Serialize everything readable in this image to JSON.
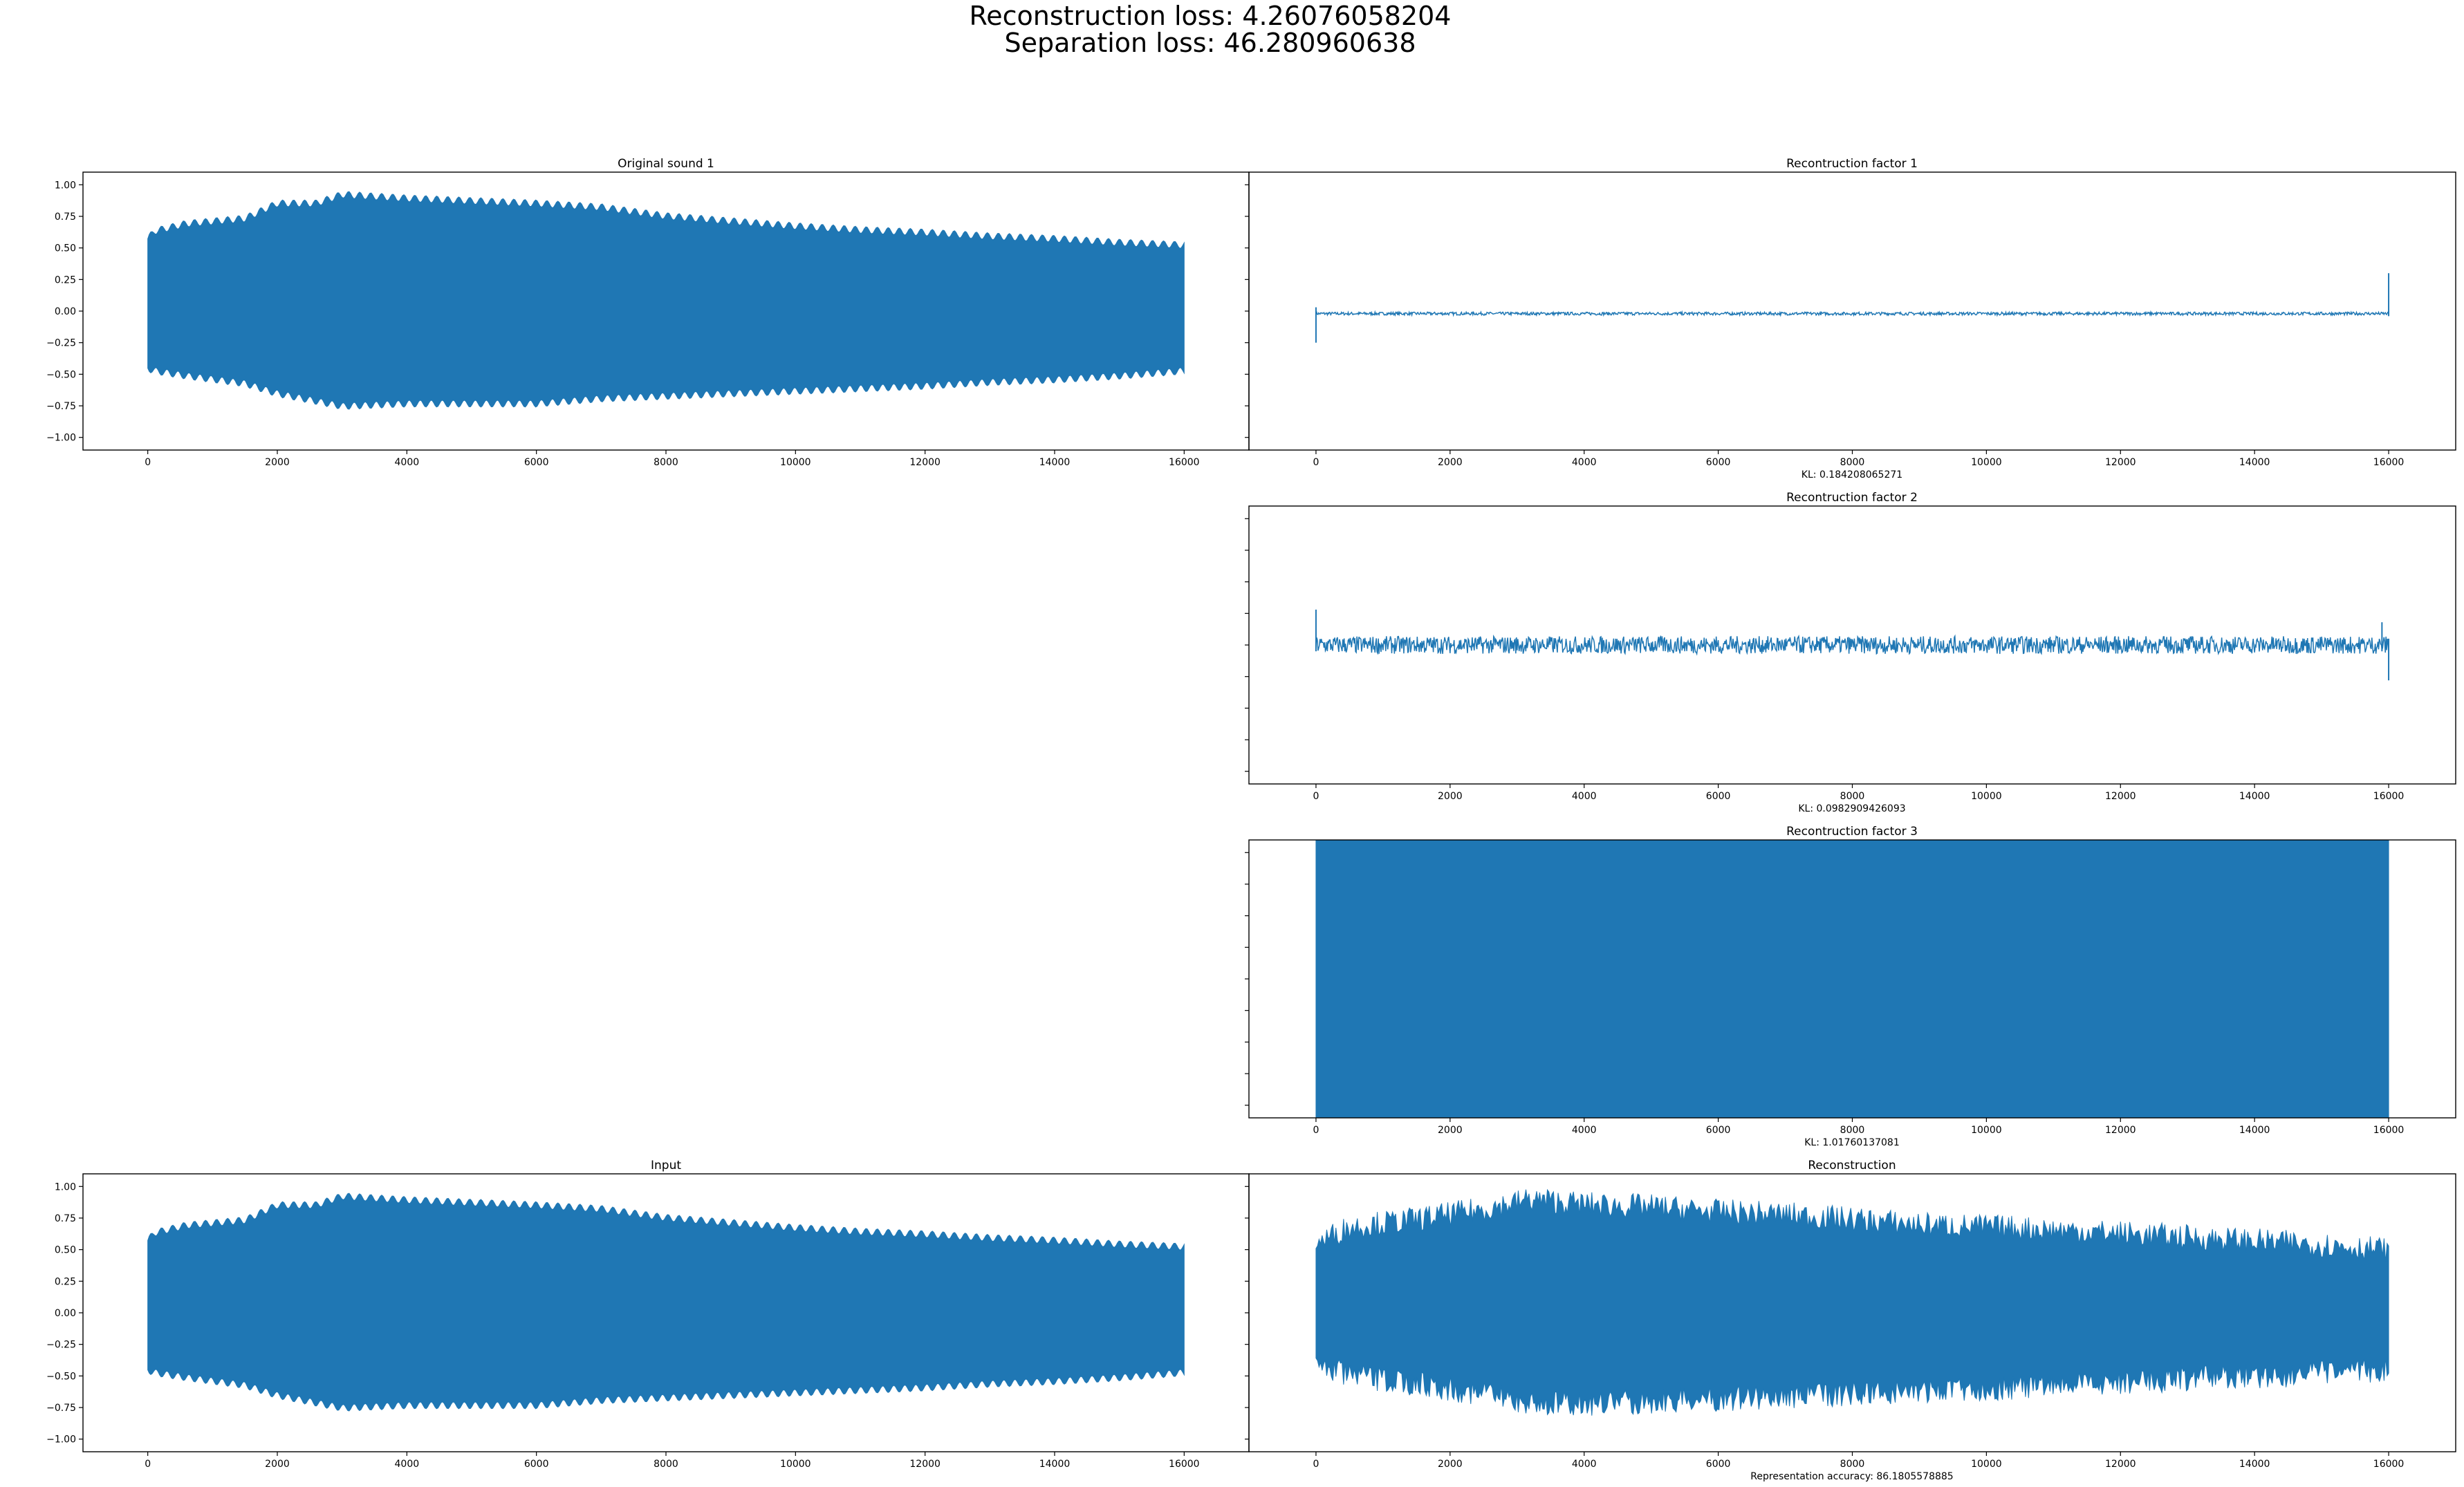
{
  "figure": {
    "suptitle_line1": "Reconstruction loss: 4.26076058204",
    "suptitle_line2": "Separation loss: 46.280960638",
    "series_color": "#1f77b4"
  },
  "chart_data": [
    {
      "id": "original-sound-1",
      "type": "line",
      "title": "Original sound 1",
      "xlabel": "",
      "xlim": [
        -1000,
        17000
      ],
      "ylim": [
        -1.1,
        1.1
      ],
      "xticks": [
        0,
        2000,
        4000,
        6000,
        8000,
        10000,
        12000,
        14000,
        16000
      ],
      "xtick_labels": [
        "0",
        "2000",
        "4000",
        "6000",
        "8000",
        "10000",
        "12000",
        "14000",
        "16000"
      ],
      "yticks": [
        -1.0,
        -0.75,
        -0.5,
        -0.25,
        0.0,
        0.25,
        0.5,
        0.75,
        1.0
      ],
      "ytick_labels": [
        "−1.00",
        "−0.75",
        "−0.50",
        "−0.25",
        "0.00",
        "0.25",
        "0.50",
        "0.75",
        "1.00"
      ],
      "signal": {
        "kind": "dense",
        "start": 0,
        "end": 16000,
        "envelope_x": [
          0,
          100,
          600,
          1500,
          2000,
          2600,
          3000,
          4000,
          5000,
          6000,
          7000,
          8000,
          9000,
          10000,
          11000,
          12000,
          13000,
          14000,
          15000,
          16000
        ],
        "upper": [
          0.6,
          0.66,
          0.72,
          0.76,
          0.88,
          0.88,
          0.95,
          0.92,
          0.9,
          0.88,
          0.85,
          0.78,
          0.74,
          0.7,
          0.67,
          0.65,
          0.62,
          0.6,
          0.57,
          0.55
        ],
        "lower": [
          -0.48,
          -0.5,
          -0.54,
          -0.6,
          -0.68,
          -0.74,
          -0.78,
          -0.76,
          -0.76,
          -0.76,
          -0.72,
          -0.7,
          -0.68,
          -0.66,
          -0.64,
          -0.62,
          -0.59,
          -0.57,
          -0.54,
          -0.5
        ],
        "ripple": 0.055,
        "ripple_period": 170
      }
    },
    {
      "id": "reconstruction-factor-1",
      "type": "line",
      "title": "Recontruction factor 1",
      "xlabel": "KL: 0.184208065271",
      "xlim": [
        -1000,
        17000
      ],
      "ylim": [
        -1.1,
        1.1
      ],
      "xticks": [
        0,
        2000,
        4000,
        6000,
        8000,
        10000,
        12000,
        14000,
        16000
      ],
      "xtick_labels": [
        "0",
        "2000",
        "4000",
        "6000",
        "8000",
        "10000",
        "12000",
        "14000",
        "16000"
      ],
      "yticks": [
        -1.0,
        -0.75,
        -0.5,
        -0.25,
        0.0,
        0.25,
        0.5,
        0.75,
        1.0
      ],
      "ytick_labels": [],
      "signal": {
        "kind": "noise",
        "start": 0,
        "end": 16000,
        "center": -0.02,
        "amp": 0.012,
        "spikes": [
          {
            "x": 0,
            "lo": -0.25,
            "hi": 0.03
          },
          {
            "x": 16000,
            "lo": -0.04,
            "hi": 0.3
          }
        ]
      }
    },
    {
      "id": "reconstruction-factor-2",
      "type": "line",
      "title": "Recontruction factor 2",
      "xlabel": "KL: 0.0982909426093",
      "xlim": [
        -1000,
        17000
      ],
      "ylim": [
        -1.1,
        1.1
      ],
      "xticks": [
        0,
        2000,
        4000,
        6000,
        8000,
        10000,
        12000,
        14000,
        16000
      ],
      "xtick_labels": [
        "0",
        "2000",
        "4000",
        "6000",
        "8000",
        "10000",
        "12000",
        "14000",
        "16000"
      ],
      "yticks": [
        -1.0,
        -0.75,
        -0.5,
        -0.25,
        0.0,
        0.25,
        0.5,
        0.75,
        1.0
      ],
      "ytick_labels": [],
      "signal": {
        "kind": "noise",
        "start": 0,
        "end": 16000,
        "center": 0.0,
        "amp": 0.07,
        "spikes": [
          {
            "x": 0,
            "lo": -0.05,
            "hi": 0.28
          },
          {
            "x": 15900,
            "lo": -0.05,
            "hi": 0.18
          },
          {
            "x": 16000,
            "lo": -0.28,
            "hi": 0.05
          }
        ]
      }
    },
    {
      "id": "reconstruction-factor-3",
      "type": "line",
      "title": "Recontruction factor 3",
      "xlabel": "KL: 1.01760137081",
      "xlim": [
        -1000,
        17000
      ],
      "ylim": [
        -1.1,
        1.1
      ],
      "xticks": [
        0,
        2000,
        4000,
        6000,
        8000,
        10000,
        12000,
        14000,
        16000
      ],
      "xtick_labels": [
        "0",
        "2000",
        "4000",
        "6000",
        "8000",
        "10000",
        "12000",
        "14000",
        "16000"
      ],
      "yticks": [
        -1.0,
        -0.75,
        -0.5,
        -0.25,
        0.0,
        0.25,
        0.5,
        0.75,
        1.0
      ],
      "ytick_labels": [],
      "signal": {
        "kind": "dense",
        "start": 0,
        "end": 16000,
        "envelope_x": [
          0,
          16000
        ],
        "upper": [
          1.1,
          1.1
        ],
        "lower": [
          -1.1,
          -1.1
        ],
        "ripple": 0.0,
        "ripple_period": 200
      }
    },
    {
      "id": "input",
      "type": "line",
      "title": "Input",
      "xlabel": "",
      "xlim": [
        -1000,
        17000
      ],
      "ylim": [
        -1.1,
        1.1
      ],
      "xticks": [
        0,
        2000,
        4000,
        6000,
        8000,
        10000,
        12000,
        14000,
        16000
      ],
      "xtick_labels": [
        "0",
        "2000",
        "4000",
        "6000",
        "8000",
        "10000",
        "12000",
        "14000",
        "16000"
      ],
      "yticks": [
        -1.0,
        -0.75,
        -0.5,
        -0.25,
        0.0,
        0.25,
        0.5,
        0.75,
        1.0
      ],
      "ytick_labels": [
        "−1.00",
        "−0.75",
        "−0.50",
        "−0.25",
        "0.00",
        "0.25",
        "0.50",
        "0.75",
        "1.00"
      ],
      "signal": {
        "kind": "dense",
        "start": 0,
        "end": 16000,
        "envelope_x": [
          0,
          100,
          600,
          1500,
          2000,
          2600,
          3000,
          4000,
          5000,
          6000,
          7000,
          8000,
          9000,
          10000,
          11000,
          12000,
          13000,
          14000,
          15000,
          16000
        ],
        "upper": [
          0.6,
          0.66,
          0.72,
          0.76,
          0.88,
          0.88,
          0.95,
          0.92,
          0.9,
          0.88,
          0.85,
          0.78,
          0.74,
          0.7,
          0.67,
          0.65,
          0.62,
          0.6,
          0.57,
          0.55
        ],
        "lower": [
          -0.48,
          -0.5,
          -0.54,
          -0.6,
          -0.68,
          -0.74,
          -0.78,
          -0.76,
          -0.76,
          -0.76,
          -0.72,
          -0.7,
          -0.68,
          -0.66,
          -0.64,
          -0.62,
          -0.59,
          -0.57,
          -0.54,
          -0.5
        ],
        "ripple": 0.055,
        "ripple_period": 170
      }
    },
    {
      "id": "reconstruction",
      "type": "line",
      "title": "Reconstruction",
      "xlabel": "Representation accuracy: 86.1805578885",
      "xlim": [
        -1000,
        17000
      ],
      "ylim": [
        -1.1,
        1.1
      ],
      "xticks": [
        0,
        2000,
        4000,
        6000,
        8000,
        10000,
        12000,
        14000,
        16000
      ],
      "xtick_labels": [
        "0",
        "2000",
        "4000",
        "6000",
        "8000",
        "10000",
        "12000",
        "14000",
        "16000"
      ],
      "yticks": [
        -1.0,
        -0.75,
        -0.5,
        -0.25,
        0.0,
        0.25,
        0.5,
        0.75,
        1.0
      ],
      "ytick_labels": [],
      "signal": {
        "kind": "dense",
        "start": 0,
        "end": 16000,
        "envelope_x": [
          0,
          500,
          1500,
          2500,
          3200,
          4000,
          5000,
          6000,
          7000,
          8000,
          9000,
          10000,
          11000,
          12000,
          13000,
          14000,
          15000,
          16000
        ],
        "upper": [
          0.55,
          0.68,
          0.74,
          0.82,
          0.9,
          0.86,
          0.84,
          0.8,
          0.78,
          0.74,
          0.7,
          0.68,
          0.66,
          0.63,
          0.6,
          0.57,
          0.54,
          0.5
        ],
        "lower": [
          -0.4,
          -0.5,
          -0.56,
          -0.64,
          -0.72,
          -0.72,
          -0.7,
          -0.68,
          -0.66,
          -0.64,
          -0.62,
          -0.6,
          -0.58,
          -0.55,
          -0.52,
          -0.5,
          -0.48,
          -0.45
        ],
        "ripple": 0.1,
        "ripple_period": 60
      }
    }
  ]
}
